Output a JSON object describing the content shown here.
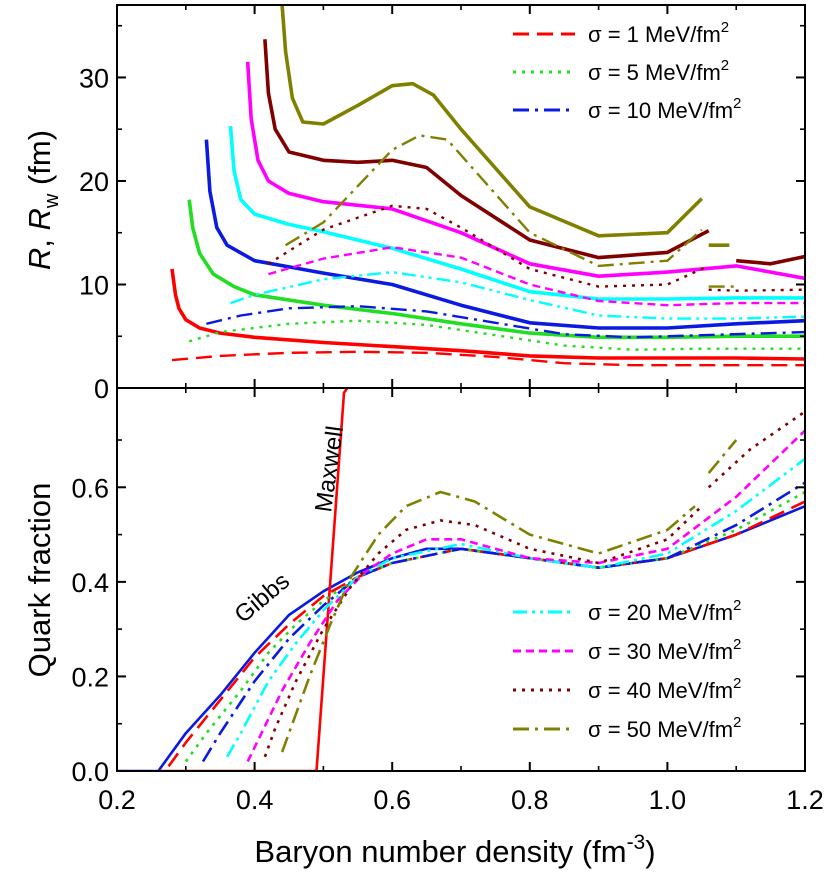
{
  "colors": {
    "s1": "#ff0000",
    "s5": "#22dd22",
    "s10": "#0a1ae0",
    "s20": "#00ffff",
    "s30": "#ff00ff",
    "s40": "#800000",
    "s50": "#808000",
    "gibbs": "#0a1ae0",
    "maxwell": "#ff0000"
  },
  "chart_data": [
    {
      "type": "line",
      "panel": "top",
      "ylabel": "R, R_w (fm)",
      "ylabel_parts": {
        "R1": "R",
        "sep": ", ",
        "R2": "R",
        "sub": "w",
        "unit": " (fm)"
      },
      "xlim": [
        0.2,
        1.2
      ],
      "ylim": [
        0,
        37
      ],
      "xticks": [
        0.2,
        0.4,
        0.6,
        0.8,
        1.0,
        1.2
      ],
      "yticks": [
        0,
        10,
        20,
        30
      ],
      "ytick_labels": [
        "0",
        "10",
        "20",
        "30"
      ],
      "legend": [
        {
          "label": "σ = 1 MeV/fm",
          "sup": "2",
          "style": "dash",
          "color_key": "s1"
        },
        {
          "label": "σ = 5 MeV/fm",
          "sup": "2",
          "style": "dot",
          "color_key": "s5"
        },
        {
          "label": "σ = 10 MeV/fm",
          "sup": "2",
          "style": "dashdot",
          "color_key": "s10"
        }
      ],
      "series": [
        {
          "color_key": "s1",
          "kind": "R",
          "x": [
            0.28,
            0.285,
            0.29,
            0.3,
            0.32,
            0.35,
            0.4,
            0.5,
            0.6,
            0.7,
            0.8,
            0.9,
            1.0,
            1.1,
            1.2
          ],
          "y": [
            11.5,
            9.0,
            7.7,
            6.6,
            5.8,
            5.3,
            4.9,
            4.4,
            4.0,
            3.6,
            3.1,
            2.9,
            2.9,
            2.9,
            2.8
          ]
        },
        {
          "color_key": "s1",
          "kind": "Rw",
          "x": [
            0.28,
            0.35,
            0.45,
            0.55,
            0.65,
            0.75,
            0.85,
            0.95,
            1.05,
            1.2
          ],
          "y": [
            2.7,
            3.1,
            3.4,
            3.5,
            3.4,
            3.0,
            2.4,
            2.2,
            2.2,
            2.2
          ]
        },
        {
          "color_key": "s5",
          "kind": "R",
          "x": [
            0.305,
            0.31,
            0.32,
            0.34,
            0.37,
            0.4,
            0.5,
            0.6,
            0.7,
            0.8,
            0.9,
            1.0,
            1.1,
            1.2
          ],
          "y": [
            18.2,
            15.5,
            13.0,
            11.0,
            9.8,
            9.0,
            8.0,
            7.2,
            6.2,
            5.3,
            4.9,
            4.9,
            5.0,
            5.0
          ]
        },
        {
          "color_key": "s5",
          "kind": "Rw",
          "x": [
            0.305,
            0.35,
            0.45,
            0.55,
            0.65,
            0.75,
            0.85,
            0.95,
            1.05,
            1.2
          ],
          "y": [
            4.5,
            5.4,
            6.2,
            6.5,
            6.1,
            5.1,
            4.1,
            3.7,
            3.8,
            3.8
          ]
        },
        {
          "color_key": "s10",
          "kind": "R",
          "x": [
            0.33,
            0.335,
            0.345,
            0.36,
            0.4,
            0.45,
            0.5,
            0.6,
            0.7,
            0.8,
            0.9,
            1.0,
            1.1,
            1.2
          ],
          "y": [
            24.0,
            19.0,
            15.5,
            13.8,
            12.3,
            11.7,
            11.1,
            10.0,
            8.0,
            6.3,
            5.8,
            5.8,
            6.2,
            6.5
          ]
        },
        {
          "color_key": "s10",
          "kind": "Rw",
          "x": [
            0.33,
            0.38,
            0.45,
            0.55,
            0.65,
            0.75,
            0.85,
            0.95,
            1.05,
            1.2
          ],
          "y": [
            6.2,
            7.0,
            7.7,
            7.9,
            7.4,
            6.3,
            5.2,
            4.9,
            5.1,
            5.4
          ]
        },
        {
          "color_key": "s20",
          "kind": "R",
          "x": [
            0.365,
            0.37,
            0.38,
            0.4,
            0.45,
            0.5,
            0.6,
            0.7,
            0.8,
            0.9,
            1.0,
            1.1,
            1.2
          ],
          "y": [
            25.3,
            21.0,
            18.2,
            16.8,
            15.8,
            15.1,
            13.5,
            11.5,
            9.3,
            8.6,
            8.6,
            8.7,
            8.7
          ]
        },
        {
          "color_key": "s20",
          "kind": "Rw",
          "x": [
            0.365,
            0.4,
            0.5,
            0.6,
            0.7,
            0.8,
            0.9,
            1.0,
            1.1,
            1.2
          ],
          "y": [
            8.2,
            9.0,
            10.5,
            11.2,
            10.2,
            8.5,
            7.0,
            6.7,
            6.7,
            6.9
          ]
        },
        {
          "color_key": "s30",
          "kind": "R",
          "x": [
            0.39,
            0.395,
            0.405,
            0.42,
            0.45,
            0.5,
            0.6,
            0.7,
            0.8,
            0.9,
            1.0,
            1.1,
            1.2
          ],
          "y": [
            31.5,
            26.0,
            22.0,
            20.0,
            18.8,
            18.0,
            17.3,
            15.0,
            12.0,
            10.8,
            11.2,
            11.8,
            10.6
          ]
        },
        {
          "color_key": "s30",
          "kind": "Rw",
          "x": [
            0.42,
            0.5,
            0.6,
            0.7,
            0.8,
            0.9,
            1.0,
            1.1,
            1.2
          ],
          "y": [
            11.0,
            12.5,
            13.6,
            12.6,
            10.0,
            8.4,
            8.0,
            8.2,
            8.2
          ]
        },
        {
          "color_key": "s40",
          "kind": "R",
          "x": [
            0.415,
            0.42,
            0.43,
            0.45,
            0.5,
            0.55,
            0.6,
            0.65,
            0.7,
            0.8,
            0.9,
            1.0,
            1.06
          ],
          "y": [
            33.7,
            28.5,
            25.0,
            22.8,
            22.0,
            21.8,
            22.0,
            21.3,
            18.6,
            14.3,
            12.6,
            13.1,
            15.2
          ]
        },
        {
          "color_key": "s40",
          "kind": "R",
          "x": [
            1.1,
            1.15,
            1.2
          ],
          "y": [
            12.3,
            12.0,
            12.7
          ]
        },
        {
          "color_key": "s40",
          "kind": "Rw",
          "x": [
            0.42,
            0.5,
            0.6,
            0.65,
            0.7,
            0.8,
            0.9,
            1.0,
            1.06
          ],
          "y": [
            12.0,
            15.3,
            17.6,
            17.3,
            15.5,
            11.5,
            9.8,
            10.0,
            11.8
          ]
        },
        {
          "color_key": "s40",
          "kind": "Rw",
          "x": [
            1.06,
            1.1,
            1.2
          ],
          "y": [
            9.5,
            9.4,
            9.5
          ]
        },
        {
          "color_key": "s50",
          "kind": "R",
          "x": [
            0.44,
            0.445,
            0.455,
            0.47,
            0.5,
            0.55,
            0.6,
            0.63,
            0.66,
            0.7,
            0.8,
            0.9,
            1.0,
            1.05
          ],
          "y": [
            37.0,
            32.5,
            28.0,
            25.7,
            25.5,
            27.3,
            29.2,
            29.4,
            28.3,
            25.0,
            17.5,
            14.7,
            15.0,
            18.3
          ]
        },
        {
          "color_key": "s50",
          "kind": "R",
          "x": [
            1.06,
            1.09
          ],
          "y": [
            13.8,
            13.8
          ]
        },
        {
          "color_key": "s50",
          "kind": "Rw",
          "x": [
            0.445,
            0.5,
            0.55,
            0.6,
            0.64,
            0.68,
            0.7,
            0.8,
            0.9,
            1.0,
            1.05
          ],
          "y": [
            13.8,
            16.0,
            19.5,
            23.0,
            24.4,
            24.0,
            22.5,
            15.0,
            11.8,
            12.3,
            15.3
          ]
        },
        {
          "color_key": "s50",
          "kind": "Rw",
          "x": [
            1.06,
            1.1
          ],
          "y": [
            9.8,
            9.8
          ]
        }
      ]
    },
    {
      "type": "line",
      "panel": "bottom",
      "ylabel": "Quark fraction",
      "xlabel": "Baryon number density (fm",
      "xlabel_sup": "-3",
      "xlabel_tail": ")",
      "xlim": [
        0.2,
        1.2
      ],
      "ylim": [
        0,
        0.81
      ],
      "xticks": [
        0.2,
        0.4,
        0.6,
        0.8,
        1.0,
        1.2
      ],
      "xtick_labels": [
        "0.2",
        "0.4",
        "0.6",
        "0.8",
        "1.0",
        "1.2"
      ],
      "yticks": [
        0,
        0.2,
        0.4,
        0.6
      ],
      "ytick_labels": [
        "0.0",
        "0.2",
        "0.4",
        "0.6"
      ],
      "legend": [
        {
          "label": "σ = 20 MeV/fm",
          "sup": "2",
          "style": "dashdotdot",
          "color_key": "s20"
        },
        {
          "label": "σ = 30 MeV/fm",
          "sup": "2",
          "style": "shortdash",
          "color_key": "s30"
        },
        {
          "label": "σ = 40 MeV/fm",
          "sup": "2",
          "style": "dot",
          "color_key": "s40"
        },
        {
          "label": "σ = 50 MeV/fm",
          "sup": "2",
          "style": "dashdot",
          "color_key": "s50"
        }
      ],
      "annotations": {
        "gibbs": "Gibbs",
        "maxwell": "Maxwell"
      },
      "series": [
        {
          "name": "Gibbs",
          "color_key": "gibbs",
          "x": [
            0.2,
            0.26,
            0.3,
            0.35,
            0.4,
            0.45,
            0.5,
            0.55,
            0.6,
            0.65,
            0.7,
            0.8,
            0.9,
            1.0,
            1.1,
            1.2
          ],
          "y": [
            0,
            0,
            0.08,
            0.16,
            0.25,
            0.33,
            0.38,
            0.42,
            0.45,
            0.47,
            0.47,
            0.45,
            0.43,
            0.45,
            0.5,
            0.56
          ]
        },
        {
          "name": "Maxwell",
          "color_key": "maxwell",
          "x": [
            0.26,
            0.293,
            0.293,
            0.297,
            0.49,
            0.49,
            0.53,
            0.535
          ],
          "y": [
            0,
            0,
            0,
            0,
            0,
            0,
            0.8,
            0.81
          ]
        },
        {
          "color_key": "s1",
          "x": [
            0.275,
            0.3,
            0.35,
            0.4,
            0.45,
            0.5,
            0.55,
            0.6,
            0.7,
            0.8,
            0.9,
            1.0,
            1.1,
            1.2
          ],
          "y": [
            0.01,
            0.06,
            0.15,
            0.24,
            0.31,
            0.37,
            0.41,
            0.44,
            0.47,
            0.45,
            0.43,
            0.45,
            0.5,
            0.57
          ]
        },
        {
          "color_key": "s5",
          "x": [
            0.3,
            0.33,
            0.38,
            0.42,
            0.46,
            0.5,
            0.55,
            0.6,
            0.7,
            0.8,
            0.9,
            1.0,
            1.1,
            1.2
          ],
          "y": [
            0.02,
            0.08,
            0.17,
            0.25,
            0.31,
            0.36,
            0.41,
            0.44,
            0.47,
            0.45,
            0.43,
            0.45,
            0.51,
            0.59
          ]
        },
        {
          "color_key": "s10",
          "x": [
            0.325,
            0.35,
            0.4,
            0.45,
            0.5,
            0.55,
            0.6,
            0.7,
            0.8,
            0.9,
            1.0,
            1.1,
            1.2
          ],
          "y": [
            0.02,
            0.08,
            0.19,
            0.28,
            0.35,
            0.41,
            0.44,
            0.47,
            0.45,
            0.43,
            0.45,
            0.52,
            0.61
          ]
        },
        {
          "color_key": "s20",
          "x": [
            0.36,
            0.38,
            0.42,
            0.46,
            0.5,
            0.55,
            0.6,
            0.7,
            0.8,
            0.9,
            1.0,
            1.1,
            1.2
          ],
          "y": [
            0.03,
            0.08,
            0.19,
            0.27,
            0.34,
            0.41,
            0.45,
            0.48,
            0.45,
            0.43,
            0.46,
            0.55,
            0.66
          ]
        },
        {
          "color_key": "s30",
          "x": [
            0.39,
            0.41,
            0.44,
            0.48,
            0.52,
            0.56,
            0.6,
            0.65,
            0.7,
            0.8,
            0.9,
            1.0,
            1.1,
            1.2
          ],
          "y": [
            0.02,
            0.08,
            0.17,
            0.27,
            0.36,
            0.42,
            0.46,
            0.49,
            0.49,
            0.45,
            0.44,
            0.47,
            0.58,
            0.72
          ]
        },
        {
          "color_key": "s40",
          "x": [
            0.415,
            0.43,
            0.46,
            0.5,
            0.54,
            0.58,
            0.62,
            0.67,
            0.72,
            0.8,
            0.9,
            1.0,
            1.05
          ],
          "y": [
            0.03,
            0.09,
            0.19,
            0.3,
            0.39,
            0.46,
            0.51,
            0.53,
            0.52,
            0.47,
            0.44,
            0.49,
            0.56
          ]
        },
        {
          "color_key": "s40",
          "x": [
            1.06,
            1.12,
            1.2
          ],
          "y": [
            0.6,
            0.68,
            0.76
          ]
        },
        {
          "color_key": "s50",
          "x": [
            0.44,
            0.455,
            0.48,
            0.51,
            0.54,
            0.58,
            0.62,
            0.67,
            0.72,
            0.8,
            0.9,
            1.0,
            1.04
          ],
          "y": [
            0.04,
            0.1,
            0.2,
            0.31,
            0.41,
            0.5,
            0.56,
            0.59,
            0.57,
            0.5,
            0.46,
            0.51,
            0.56
          ]
        },
        {
          "color_key": "s50",
          "x": [
            1.06,
            1.1
          ],
          "y": [
            0.63,
            0.7
          ]
        }
      ]
    }
  ]
}
